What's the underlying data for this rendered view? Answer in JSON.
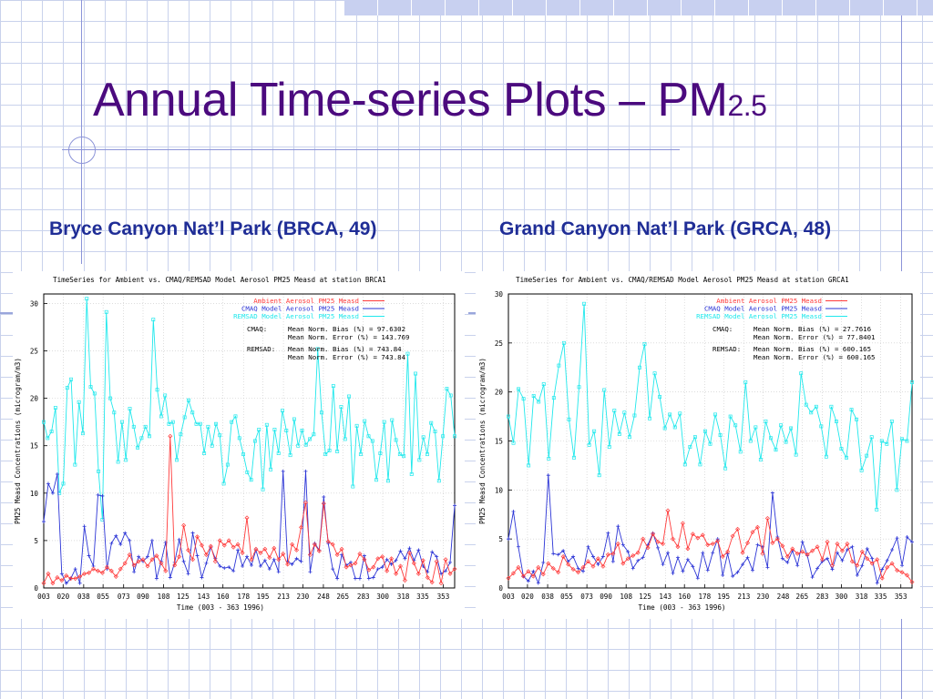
{
  "slide": {
    "title_main": "Annual Time-series Plots – PM",
    "title_sub": "2.5",
    "left_caption": "Bryce Canyon Nat’l Park (BRCA, 49)",
    "right_caption": "Grand Canyon Nat’l Park (GRCA, 48)"
  },
  "colors": {
    "title": "#4b0a7e",
    "caption": "#1f2d96",
    "ambient": "#ff3a3a",
    "cmaq": "#2b34d6",
    "remsad": "#20e8ec"
  },
  "chart_data": [
    {
      "type": "line",
      "title": "TimeSeries for Ambient vs. CMAQ/REMSAD Model Aerosol PM25 Measd at station BRCA1",
      "xlabel": "Time    (003 - 363 1996)",
      "ylabel": "PM25 Measd Concentrations (microgram/m3)",
      "ylim": [
        0,
        31
      ],
      "xlim": [
        3,
        363
      ],
      "yticks": [
        "0",
        "5",
        "10",
        "15",
        "20",
        "25",
        "30"
      ],
      "xticks": [
        "003",
        "020",
        "038",
        "055",
        "073",
        "090",
        "108",
        "125",
        "143",
        "160",
        "178",
        "195",
        "213",
        "230",
        "248",
        "265",
        "283",
        "300",
        "318",
        "335",
        "353"
      ],
      "grid": true,
      "legend_position": "top-right",
      "series": [
        {
          "name": "Ambient Aerosol PM25 Measd",
          "values": [
            0.5,
            1.5,
            0.5,
            1.1,
            0.8,
            1.3,
            1,
            1,
            1.2,
            1.5,
            1.6,
            2,
            1.8,
            1.6,
            2.2,
            1.8,
            1.2,
            2,
            2.6,
            3.5,
            2.4,
            2.8,
            3,
            2.3,
            3,
            3.4,
            2.6,
            1.8,
            16,
            2.4,
            3.3,
            6.6,
            4,
            3,
            5.4,
            4.5,
            3.5,
            4.4,
            2.8,
            5,
            4.5,
            5,
            4.3,
            4.6,
            3.7,
            7.4,
            3,
            4.1,
            3.7,
            4.1,
            3.2,
            4.2,
            3,
            3.6,
            2.5,
            4.6,
            4,
            6.4,
            9,
            3.5,
            4.6,
            3.9,
            8.9,
            4.9,
            4.6,
            3.5,
            4.1,
            2.2,
            2.4,
            2.6,
            3.6,
            3,
            1.9,
            2.2,
            3.1,
            3.3,
            1.8,
            3.1,
            1.5,
            2.3,
            0.8,
            3.7,
            2.6,
            1.5,
            2.9,
            1.1,
            0.6,
            2.8,
            0.5,
            3,
            1.5,
            2
          ]
        },
        {
          "name": "CMAQ Model Aerosol PM25 Measd",
          "values": [
            7,
            11,
            10,
            12,
            1.5,
            0.5,
            1,
            2,
            0.5,
            6.5,
            3.4,
            2.3,
            9.8,
            9.7,
            2,
            4.7,
            5.5,
            4.6,
            5.8,
            5,
            1.7,
            3.3,
            2.8,
            3.3,
            5,
            1,
            2.8,
            4.8,
            1.1,
            2.7,
            5.1,
            2.8,
            1.5,
            5.8,
            3.4,
            1.1,
            2.6,
            4.3,
            3.1,
            2.3,
            2.1,
            2.2,
            1.8,
            4,
            2.3,
            3.3,
            2.4,
            4,
            2.3,
            2.9,
            2,
            3,
            1.7,
            12.3,
            2.8,
            2.5,
            3.1,
            2.8,
            12.3,
            1.7,
            4.7,
            4,
            9.6,
            4.7,
            2,
            1,
            3.5,
            2.4,
            2.7,
            1,
            1,
            3.4,
            1,
            1.1,
            2,
            2.2,
            3,
            2.5,
            2.9,
            3.9,
            3.1,
            4.2,
            2.9,
            4,
            2.3,
            1.7,
            3.8,
            3.3,
            1.5,
            1.8,
            2.7,
            8.7
          ]
        },
        {
          "name": "REMSAD Model Aerosol PM25 Measd",
          "values": [
            17.5,
            15.8,
            16.5,
            19,
            10,
            11,
            21.1,
            22,
            13,
            19.6,
            16.3,
            30.5,
            21.2,
            20.5,
            12.3,
            7.2,
            29.1,
            20,
            18.5,
            13.3,
            17.5,
            13.5,
            18.9,
            17,
            14.8,
            15.8,
            17,
            16,
            28.3,
            20.9,
            18.1,
            20.3,
            17.3,
            17.5,
            13.5,
            16.2,
            18,
            19.8,
            18.5,
            17.3,
            17.3,
            14.2,
            17,
            15,
            17.3,
            16.1,
            11,
            13,
            17.5,
            18.1,
            15.8,
            14.1,
            12.2,
            11.4,
            15.5,
            16.7,
            10.4,
            17.2,
            12.5,
            16.7,
            14.2,
            18.7,
            16.6,
            14,
            17.8,
            15,
            16.6,
            15.1,
            15.7,
            16.2,
            25.2,
            18.5,
            14.1,
            14.5,
            21.3,
            14.4,
            19.1,
            15.7,
            20.2,
            10.7,
            17.1,
            14.1,
            17.6,
            16,
            15.5,
            11.4,
            14.2,
            17.5,
            11.3,
            17.7,
            15.6,
            14.1,
            13.9,
            24.7,
            12,
            22.6,
            13.5,
            15.9,
            14.1,
            17.4,
            16.5,
            11.3,
            16,
            21,
            20.3,
            16
          ]
        }
      ],
      "stats": {
        "cmaq_label": "CMAQ:",
        "cmaq_bias": "Mean Norm. Bias (%) = 97.6302",
        "cmaq_error": "Mean Norm. Error (%) = 143.769",
        "remsad_label": "REMSAD:",
        "remsad_bias": "Mean Norm. Bias (%) = 743.84",
        "remsad_error": "Mean Norm. Error (%) = 743.84"
      }
    },
    {
      "type": "line",
      "title": "TimeSeries for Ambient vs. CMAQ/REMSAD Model Aerosol PM25 Measd at station GRCA1",
      "xlabel": "Time    (003 - 363 1996)",
      "ylabel": "PM25 Measd Concentrations (microgram/m3)",
      "ylim": [
        0,
        30
      ],
      "xlim": [
        3,
        363
      ],
      "yticks": [
        "0",
        "5",
        "10",
        "15",
        "20",
        "25",
        "30"
      ],
      "xticks": [
        "003",
        "020",
        "038",
        "055",
        "073",
        "090",
        "108",
        "125",
        "143",
        "160",
        "178",
        "195",
        "213",
        "230",
        "248",
        "265",
        "283",
        "300",
        "318",
        "335",
        "353"
      ],
      "grid": true,
      "legend_position": "top-right",
      "series": [
        {
          "name": "Ambient Aerosol PM25 Measd",
          "values": [
            1,
            1.5,
            2.1,
            1.2,
            1.7,
            1.2,
            2.1,
            1.4,
            2.5,
            2,
            1.6,
            3.2,
            2.4,
            1.9,
            1.6,
            2.1,
            2.7,
            2.2,
            3,
            2.2,
            3.4,
            3.5,
            4.5,
            2.5,
            3,
            3.3,
            3.6,
            5,
            4.1,
            5.5,
            4.7,
            4.5,
            7.9,
            5,
            4.2,
            6.6,
            4,
            5.5,
            5.1,
            5.4,
            4.4,
            4.5,
            4.8,
            3.2,
            3.7,
            5.3,
            6,
            3.6,
            4.6,
            5.7,
            6.2,
            3.5,
            7.1,
            4.6,
            5,
            4.3,
            3.2,
            4,
            3.5,
            3.7,
            3.4,
            3.8,
            4.2,
            2.9,
            4.7,
            2.3,
            4.5,
            3.8,
            4.5,
            2.7,
            2.3,
            3.7,
            3,
            2.5,
            2.9,
            1,
            2.1,
            2.5,
            1.8,
            1.6,
            1.3,
            0.6
          ]
        },
        {
          "name": "CMAQ Model Aerosol PM25 Measd",
          "values": [
            5,
            7.8,
            4.2,
            1.2,
            0.7,
            1.7,
            0.5,
            2.6,
            11.5,
            3.5,
            3.4,
            3.8,
            2.7,
            3.2,
            2,
            1.7,
            4.2,
            3.2,
            2.4,
            3.2,
            5.6,
            2.7,
            6.3,
            4.4,
            3.7,
            2,
            2.8,
            3.1,
            4.4,
            5.6,
            4.1,
            2.4,
            3.6,
            1.5,
            3.1,
            1.7,
            2.9,
            2.2,
            1,
            3.6,
            1.8,
            3.6,
            5,
            1.3,
            3.5,
            1.2,
            1.6,
            2.4,
            3.1,
            1.8,
            4.4,
            4.2,
            2.1,
            9.7,
            5.2,
            3,
            2.6,
            3.8,
            2.3,
            4.7,
            3.3,
            1.1,
            2,
            2.7,
            3,
            1.9,
            3.6,
            2.8,
            3.9,
            4.2,
            1.3,
            2.3,
            4,
            3,
            0.5,
            1.9,
            2.8,
            3.9,
            5.1,
            2.3,
            5.2,
            4.7
          ]
        },
        {
          "name": "REMSAD Model Aerosol PM25 Measd",
          "values": [
            17.5,
            14.8,
            20.3,
            19.3,
            12.5,
            19.6,
            19,
            20.8,
            13.2,
            19.4,
            22.7,
            25,
            17.2,
            13.3,
            20.5,
            29,
            14.6,
            16,
            11.5,
            20.2,
            14.4,
            18.1,
            15.7,
            17.9,
            15.4,
            17.6,
            22.5,
            24.9,
            17.3,
            21.9,
            19.5,
            16.3,
            17.7,
            16.4,
            17.8,
            12.6,
            14.4,
            15.4,
            12.6,
            16,
            14.7,
            17.7,
            15.6,
            12.2,
            17.5,
            16.6,
            13.9,
            21,
            15,
            16.4,
            13.1,
            17,
            15.3,
            14.1,
            16.6,
            14.9,
            16.3,
            13.6,
            21.9,
            18.7,
            17.9,
            18.5,
            16.5,
            13.4,
            18.5,
            17,
            14.2,
            13.3,
            18.2,
            17.2,
            12,
            13.5,
            15.4,
            8,
            15,
            14.7,
            17,
            10,
            15.2,
            15,
            21
          ]
        }
      ],
      "stats": {
        "cmaq_label": "CMAQ:",
        "cmaq_bias": "Mean Norm. Bias (%) = 27.7616",
        "cmaq_error": "Mean Norm. Error (%) = 77.8401",
        "remsad_label": "REMSAD:",
        "remsad_bias": "Mean Norm. Bias (%) = 600.165",
        "remsad_error": "Mean Norm. Error (%) = 600.165"
      }
    }
  ]
}
